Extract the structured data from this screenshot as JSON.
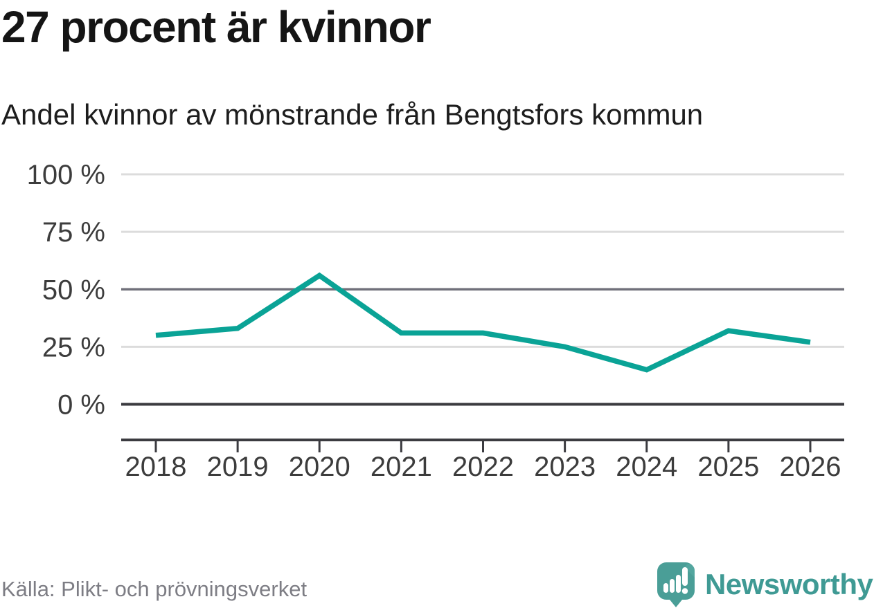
{
  "title": "27 procent är kvinnor",
  "subtitle": "Andel kvinnor av mönstrande från Bengtsfors kommun",
  "source": {
    "text": "Källa: Plikt- och prövningsverket"
  },
  "brand": {
    "name": "Newsworthy",
    "color": "#3f9a94",
    "icon_color": "#4a9e97"
  },
  "chart_data": {
    "type": "line",
    "title": "27 procent är kvinnor",
    "subtitle": "Andel kvinnor av mönstrande från Bengtsfors kommun",
    "x": [
      2018,
      2019,
      2020,
      2021,
      2022,
      2023,
      2024,
      2025,
      2026
    ],
    "values": [
      30,
      33,
      56,
      31,
      31,
      25,
      15,
      32,
      27
    ],
    "unit": "%",
    "xlabel": "",
    "ylabel": "",
    "ylim": [
      0,
      100
    ],
    "yticks": [
      0,
      25,
      50,
      75,
      100
    ],
    "ytick_labels": [
      "0 %",
      "25 %",
      "50 %",
      "75 %",
      "100 %"
    ],
    "xtick_labels": [
      "2018",
      "2019",
      "2020",
      "2021",
      "2022",
      "2023",
      "2024",
      "2025",
      "2026"
    ],
    "grid": "horizontal",
    "legend": "none",
    "line_color": "#0aa396",
    "gridline_color_light": "#dcdcdc",
    "gridline_color_mid": "#70707a",
    "axis_color": "#3b3b40",
    "tick_label_color": "#3c3c3c"
  }
}
